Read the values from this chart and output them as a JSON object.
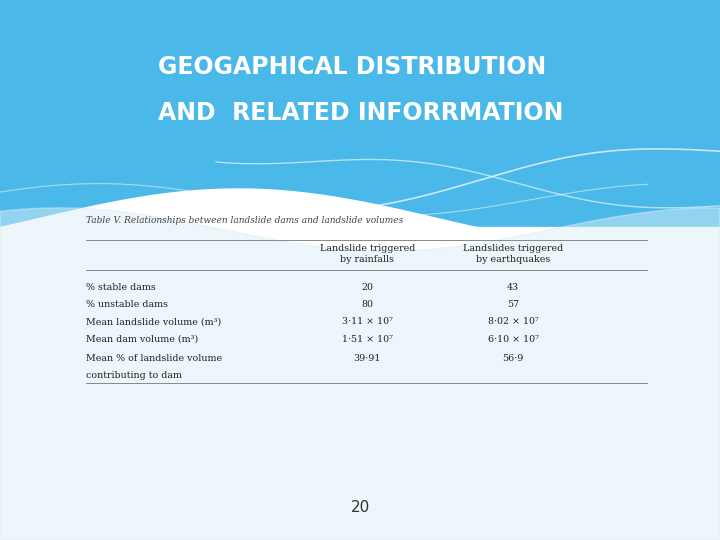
{
  "title_line1": "GEOGAPHICAL DISTRIBUTION",
  "title_line2": "AND  RELATED INFORRMATION",
  "table_title": "Table V. Relationships between landslide dams and landslide volumes",
  "col_headers": [
    [
      "Landslide triggered",
      "by rainfalls"
    ],
    [
      "Landslides triggered",
      "by earthquakes"
    ]
  ],
  "rows": [
    {
      "label": "% stable dams",
      "label2": null,
      "val1": "20",
      "val2": "43"
    },
    {
      "label": "% unstable dams",
      "label2": null,
      "val1": "80",
      "val2": "57"
    },
    {
      "label": "Mean landslide volume (m³)",
      "label2": null,
      "val1": "3·11 × 10⁷",
      "val2": "8·02 × 10⁷"
    },
    {
      "label": "Mean dam volume (m³)",
      "label2": null,
      "val1": "1·51 × 10⁷",
      "val2": "6·10 × 10⁷"
    },
    {
      "label": "Mean % of landslide volume",
      "label2": "contributing to dam",
      "val1": "39·91",
      "val2": "56·9"
    }
  ],
  "page_number": "20",
  "blue_color": "#4ab8e8",
  "white_color": "#ffffff",
  "light_blue": "#c8e8f5",
  "title_color": "#ffffff",
  "text_color": "#333333",
  "line_color": "#888888"
}
